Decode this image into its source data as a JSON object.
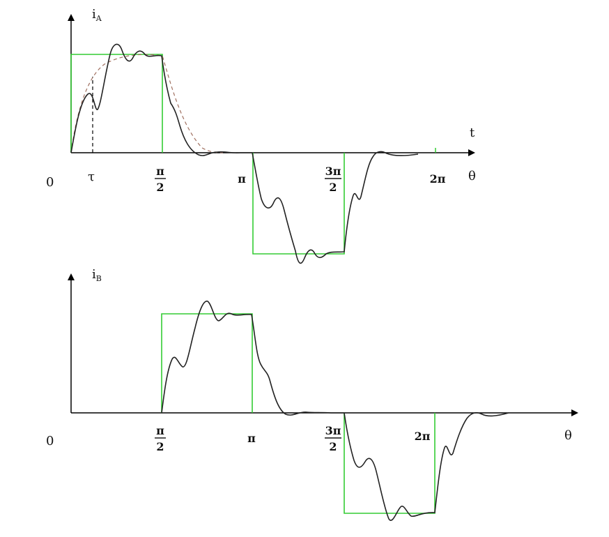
{
  "colors": {
    "axis": "#000000",
    "ideal_wave": "#33cc33",
    "actual_wave": "#222222",
    "dashed_envelope": "#a07060"
  },
  "top_plot": {
    "y_axis_label": "i",
    "y_axis_sub": "A",
    "t_axis_label": "t",
    "theta_label": "θ",
    "origin_label": "0",
    "tau_label": "τ",
    "tick_pi_half_num": "π",
    "tick_pi_half_den": "2",
    "tick_pi": "π",
    "tick_3pi_half_num": "3π",
    "tick_3pi_half_den": "2",
    "tick_2pi": "2π"
  },
  "bottom_plot": {
    "y_axis_label": "i",
    "y_axis_sub": "B",
    "theta_label": "θ",
    "origin_label": "0",
    "tick_pi_half_num": "π",
    "tick_pi_half_den": "2",
    "tick_pi": "π",
    "tick_3pi_half_num": "3π",
    "tick_3pi_half_den": "2",
    "tick_2pi": "2π"
  }
}
